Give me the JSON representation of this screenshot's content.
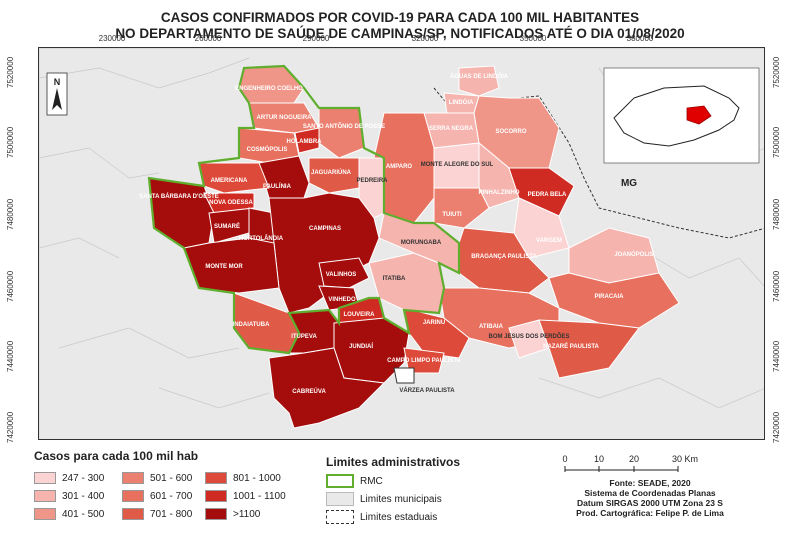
{
  "title_line1": "CASOS CONFIRMADOS POR COVID-19 PARA CADA 100 MIL HABITANTES",
  "title_line2": "NO DEPARTAMENTO DE SAÚDE DE CAMPINAS/SP, NOTIFICADOS ATÉ O DIA 01/08/2020",
  "x_ticks": [
    "230000",
    "260000",
    "290000",
    "320000",
    "350000",
    "380000"
  ],
  "y_ticks": [
    "7520000",
    "7500000",
    "7480000",
    "7460000",
    "7440000",
    "7420000"
  ],
  "north_label": "N",
  "mg_label": "MG",
  "municipalities": {
    "aguas": "ÁGUAS DE LINDÓIA",
    "lindoia": "LINDÓIA",
    "serra_negra": "SERRA NEGRA",
    "socorro": "SOCORRO",
    "engenheiro": "ENGENHEIRO COELHO",
    "artur": "ARTUR NOGUEIRA",
    "santo_antonio": "SANTO ANTÔNIO DE POSSE",
    "holambra": "HOLAMBRA",
    "cosmopolis": "COSMÓPOLIS",
    "amparo": "AMPARO",
    "monte_alegre": "MONTE ALEGRE DO SUL",
    "americana": "AMERICANA",
    "jaguariuna": "JAGUARIÚNA",
    "pedreira": "PEDREIRA",
    "paulinia": "PAULÍNIA",
    "pinhalzinho": "PINHALZINHO",
    "pedra_bela": "PEDRA BELA",
    "santa_barbara": "SANTA BÁRBARA D'OESTE",
    "nova_odessa": "NOVA ODESSA",
    "tuiuti": "TUIUTI",
    "sumare": "SUMARÉ",
    "hortolandia": "HORTOLÂNDIA",
    "campinas": "CAMPINAS",
    "morungaba": "MORUNGABA",
    "vargem": "VARGEM",
    "braganca": "BRAGANÇA PAULISTA",
    "joanopolis": "JOANÓPOLIS",
    "monte_mor": "MONTE MOR",
    "valinhos": "VALINHOS",
    "itatiba": "ITATIBA",
    "piracaia": "PIRACAIA",
    "vinhedo": "VINHEDO",
    "indaiatuba": "INDAIATUBA",
    "louveira": "LOUVEIRA",
    "jarinu": "JARINU",
    "atibaia": "ATIBAIA",
    "bom_jesus": "BOM JESUS DOS PERDÕES",
    "nazare": "NAZARÉ PAULISTA",
    "itupeva": "ITUPEVA",
    "jundiai": "JUNDIAÍ",
    "campo_limpo": "CAMPO LIMPO PAULISTA",
    "varzea": "VÁRZEA PAULISTA",
    "cabreuva": "CABREÚVA"
  },
  "legend": {
    "title": "Casos para cada 100 mil hab",
    "classes": [
      {
        "label": "247 - 300",
        "color": "#fbd3d3"
      },
      {
        "label": "301 - 400",
        "color": "#f6b4ae"
      },
      {
        "label": "401 - 500",
        "color": "#f09689"
      },
      {
        "label": "501 - 600",
        "color": "#ec8070"
      },
      {
        "label": "601 - 700",
        "color": "#e8705e"
      },
      {
        "label": "701 - 800",
        "color": "#e05a48"
      },
      {
        "label": "801 - 1000",
        "color": "#de4a3a"
      },
      {
        "label": "1001 - 1100",
        "color": "#cf2b22"
      },
      {
        "label": ">1100",
        "color": "#a50d0d"
      }
    ]
  },
  "admin_legend": {
    "title": "Limites administrativos",
    "rmc": "RMC",
    "municipal": "Limites municipais",
    "state": "Limites estaduais"
  },
  "scale": {
    "labels": [
      "0",
      "10",
      "20",
      "30 Km"
    ]
  },
  "credits": {
    "source": "Fonte: SEADE, 2020",
    "system": "Sistema de Coordenadas Planas",
    "datum": "Datum SIRGAS 2000 UTM Zona 23 S",
    "author": "Prod. Cartográfica: Felipe P. de Lima"
  },
  "colors": {
    "rmc_border": "#5fae2e",
    "background": "#e9e9e9"
  }
}
